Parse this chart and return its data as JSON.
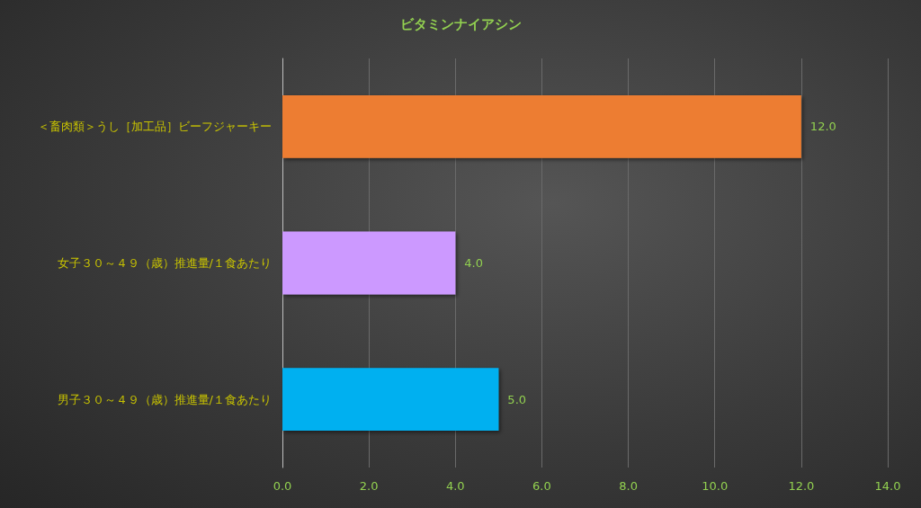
{
  "chart_data": {
    "type": "bar",
    "orientation": "horizontal",
    "title": "ビタミンナイアシン",
    "categories": [
      "＜畜肉類＞うし［加工品］ビーフジャーキー",
      "女子３０～４９（歳）推進量/１食あたり",
      "男子３０～４９（歳）推進量/１食あたり"
    ],
    "values": [
      12,
      4,
      5
    ],
    "colors": [
      "#ed7d31",
      "#cc99ff",
      "#00b0f0"
    ],
    "value_labels": [
      "12.0",
      "4.0",
      "5.0"
    ],
    "xlim": [
      0,
      14
    ],
    "xticks": [
      {
        "value": 0,
        "label": "0.0"
      },
      {
        "value": 2,
        "label": "2.0"
      },
      {
        "value": 4,
        "label": "4.0"
      },
      {
        "value": 6,
        "label": "6.0"
      },
      {
        "value": 8,
        "label": "8.0"
      },
      {
        "value": 10,
        "label": "10.0"
      },
      {
        "value": 12,
        "label": "12.0"
      },
      {
        "value": 14,
        "label": "14.0"
      }
    ],
    "grid": "x"
  }
}
